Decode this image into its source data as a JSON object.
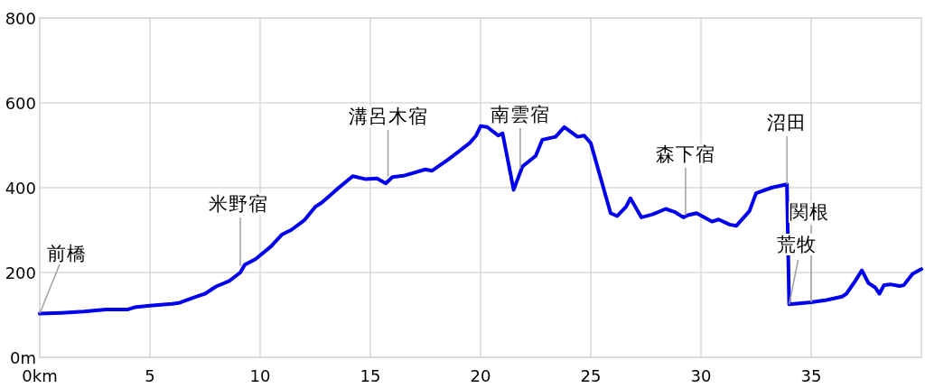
{
  "chart_data": {
    "type": "line",
    "xlim": [
      0,
      40
    ],
    "ylim": [
      0,
      800
    ],
    "xticks": [
      {
        "value": 0,
        "label": "0km"
      },
      5,
      10,
      15,
      20,
      25,
      30,
      35
    ],
    "yticks": [
      {
        "value": 0,
        "label": "0m"
      },
      200,
      400,
      600,
      800
    ],
    "grid": true,
    "marker": "none",
    "line_style": "solid",
    "series": [
      {
        "color": "#0000ee",
        "x": [
          0,
          1,
          2,
          3,
          4,
          4.3,
          5,
          6,
          6.3,
          7.2,
          7.5,
          8,
          8.6,
          9.1,
          9.3,
          9.8,
          10.5,
          11,
          11.4,
          12,
          12.5,
          12.8,
          13.5,
          14.2,
          14.8,
          15.3,
          15.7,
          16,
          16.5,
          17.5,
          17.8,
          18.5,
          19.5,
          19.8,
          20,
          20.3,
          20.8,
          21,
          21.5,
          21.9,
          22.5,
          22.8,
          23.4,
          23.8,
          24.4,
          24.7,
          25,
          25.9,
          26.2,
          26.6,
          26.8,
          27.3,
          27.8,
          28.4,
          28.8,
          29.2,
          29.4,
          29.8,
          30.5,
          30.8,
          31.3,
          31.6,
          32.2,
          32.5,
          33.2,
          33.9,
          34,
          35,
          35.7,
          36.4,
          36.6,
          37,
          37.3,
          37.6,
          37.9,
          38.1,
          38.3,
          38.6,
          39,
          39.2,
          39.6,
          40
        ],
        "values": [
          103,
          105,
          108,
          113,
          113,
          118,
          122,
          126,
          128,
          145,
          150,
          167,
          180,
          200,
          218,
          232,
          262,
          290,
          300,
          323,
          355,
          365,
          397,
          427,
          420,
          422,
          410,
          425,
          428,
          443,
          440,
          465,
          505,
          523,
          545,
          543,
          523,
          528,
          395,
          450,
          475,
          513,
          520,
          543,
          520,
          523,
          505,
          340,
          333,
          355,
          375,
          330,
          337,
          350,
          343,
          330,
          335,
          340,
          320,
          325,
          313,
          310,
          345,
          387,
          400,
          408,
          125,
          130,
          135,
          143,
          150,
          180,
          205,
          175,
          165,
          150,
          170,
          172,
          168,
          170,
          197,
          208
        ]
      }
    ],
    "annotations": [
      {
        "text": "前橋",
        "x": 0,
        "y": 103
      },
      {
        "text": "米野宿",
        "x": 9.1,
        "y": 215
      },
      {
        "text": "溝呂木宿",
        "x": 15.8,
        "y": 426
      },
      {
        "text": "南雲宿",
        "x": 21.8,
        "y": 445
      },
      {
        "text": "森下宿",
        "x": 29.3,
        "y": 335
      },
      {
        "text": "沼田",
        "x": 33.9,
        "y": 408
      },
      {
        "text": "関根",
        "x": 35,
        "y": 130
      },
      {
        "text": "荒牧",
        "x": 34,
        "y": 125
      }
    ]
  }
}
